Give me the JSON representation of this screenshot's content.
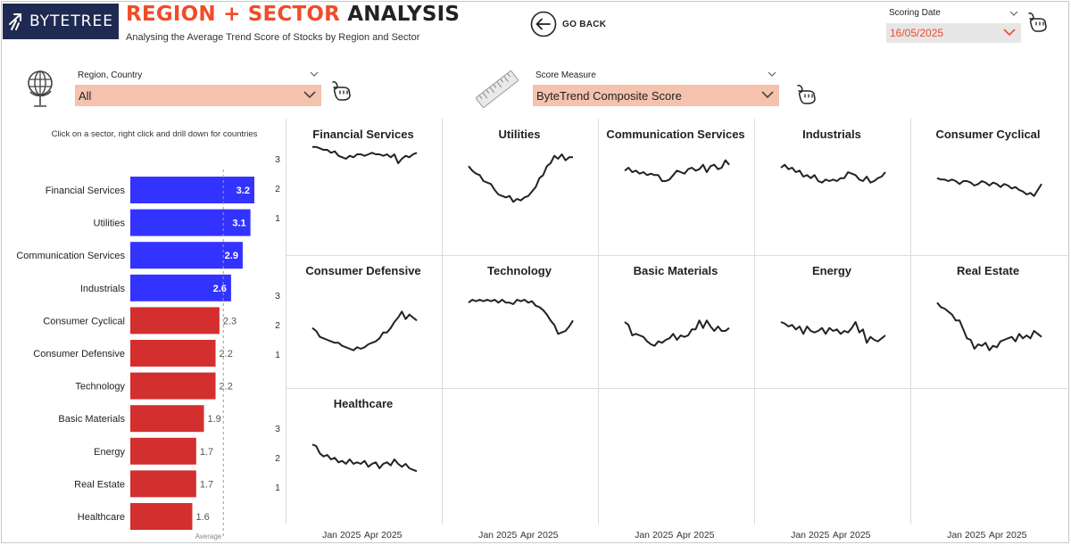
{
  "header": {
    "logo_text": "BYTETREE",
    "title_accent": "REGION + SECTOR",
    "title_rest": "ANALYSIS",
    "subtitle": "Analysing the Average Trend Score of Stocks by Region and Sector",
    "go_back_label": "GO BACK"
  },
  "filters": {
    "scoring_date": {
      "label": "Scoring Date",
      "value": "16/05/2025"
    },
    "region": {
      "label": "Region, Country",
      "value": "All"
    },
    "measure": {
      "label": "Score Measure",
      "value": "ByteTrend Composite Score"
    }
  },
  "colors": {
    "accent": "#ef4c2a",
    "bar_above": "#3333ff",
    "bar_below": "#d32f2f",
    "slicer_bg": "#f4c2ad",
    "date_bg": "#e6e6e6",
    "logo_bg": "#1f2a52",
    "line": "#222222"
  },
  "icons": {
    "logo": "bytetree-logo-icon",
    "back": "back-arrow-circle-icon",
    "pointer": "pointing-hand-icon",
    "region": "globe-icon",
    "measure": "ruler-icon",
    "dropdown": "chevron-down-icon"
  },
  "chart_data": [
    {
      "type": "bar",
      "orientation": "horizontal",
      "caption": "Click on a sector, right click and drill down for countries",
      "categories": [
        "Financial Services",
        "Utilities",
        "Communication Services",
        "Industrials",
        "Consumer Cyclical",
        "Consumer Defensive",
        "Technology",
        "Basic Materials",
        "Energy",
        "Real Estate",
        "Healthcare"
      ],
      "values": [
        3.2,
        3.1,
        2.9,
        2.6,
        2.3,
        2.2,
        2.2,
        1.9,
        1.7,
        1.7,
        1.6
      ],
      "value_labels": [
        "3.2",
        "3.1",
        "2.9",
        "2.6",
        "2.3",
        "2.2",
        "2.2",
        "1.9",
        "1.7",
        "1.7",
        "1.6"
      ],
      "reference_line": {
        "label": "Average",
        "value": 2.4
      },
      "xlim": [
        0,
        3.5
      ]
    },
    {
      "type": "line",
      "layout": "small-multiples",
      "ylim": [
        0.5,
        3.5
      ],
      "y_ticks": [
        "3",
        "2",
        "1"
      ],
      "x_ticks": [
        "Jan 2025",
        "Apr 2025"
      ],
      "x_tick_positions": [
        0.3,
        0.7
      ],
      "panels": [
        {
          "name": "Financial Services",
          "values": [
            3.45,
            3.45,
            3.4,
            3.35,
            3.35,
            3.25,
            3.3,
            3.15,
            3.1,
            3.05,
            3.15,
            3.1,
            3.2,
            3.2,
            3.15,
            3.2,
            3.25,
            3.2,
            3.2,
            3.15,
            3.2,
            3.1,
            3.2,
            2.9,
            3.05,
            3.15,
            3.1,
            3.2,
            3.25
          ]
        },
        {
          "name": "Utilities",
          "values": [
            2.8,
            2.65,
            2.55,
            2.5,
            2.3,
            2.25,
            2.2,
            2.0,
            1.85,
            1.8,
            1.75,
            1.8,
            1.6,
            1.7,
            1.65,
            1.75,
            1.8,
            1.95,
            2.1,
            2.4,
            2.5,
            2.8,
            2.9,
            3.15,
            3.05,
            3.2,
            3.0,
            3.1,
            3.1
          ]
        },
        {
          "name": "Communication Services",
          "values": [
            2.65,
            2.75,
            2.6,
            2.65,
            2.55,
            2.6,
            2.5,
            2.55,
            2.5,
            2.5,
            2.3,
            2.3,
            2.35,
            2.5,
            2.65,
            2.6,
            2.55,
            2.7,
            2.75,
            2.65,
            2.7,
            2.85,
            2.6,
            2.8,
            2.85,
            2.7,
            2.75,
            3.0,
            2.85
          ]
        },
        {
          "name": "Industrials",
          "values": [
            2.75,
            2.85,
            2.7,
            2.75,
            2.6,
            2.65,
            2.45,
            2.5,
            2.4,
            2.5,
            2.3,
            2.25,
            2.35,
            2.3,
            2.35,
            2.3,
            2.4,
            2.4,
            2.6,
            2.55,
            2.5,
            2.35,
            2.3,
            2.45,
            2.25,
            2.3,
            2.4,
            2.45,
            2.6
          ]
        },
        {
          "name": "Consumer Cyclical",
          "values": [
            2.4,
            2.35,
            2.35,
            2.3,
            2.35,
            2.3,
            2.2,
            2.3,
            2.3,
            2.25,
            2.15,
            2.2,
            2.3,
            2.25,
            2.15,
            2.25,
            2.2,
            2.1,
            2.2,
            2.15,
            2.05,
            2.1,
            2.0,
            1.95,
            1.85,
            1.9,
            1.8,
            2.0,
            2.2
          ]
        },
        {
          "name": "Consumer Defensive",
          "values": [
            1.95,
            1.85,
            1.65,
            1.6,
            1.55,
            1.5,
            1.45,
            1.45,
            1.35,
            1.3,
            1.25,
            1.2,
            1.3,
            1.25,
            1.3,
            1.4,
            1.45,
            1.5,
            1.6,
            1.8,
            1.8,
            1.95,
            2.15,
            2.3,
            2.5,
            2.25,
            2.4,
            2.3,
            2.2
          ]
        },
        {
          "name": "Technology",
          "values": [
            2.8,
            2.9,
            2.85,
            2.9,
            2.85,
            2.9,
            2.85,
            2.9,
            2.8,
            2.9,
            2.8,
            2.8,
            2.75,
            2.9,
            2.85,
            2.9,
            2.8,
            2.85,
            2.7,
            2.65,
            2.55,
            2.4,
            2.2,
            2.05,
            1.75,
            1.8,
            1.85,
            2.0,
            2.2
          ]
        },
        {
          "name": "Basic Materials",
          "values": [
            2.15,
            2.05,
            1.7,
            1.75,
            1.7,
            1.65,
            1.5,
            1.4,
            1.35,
            1.5,
            1.45,
            1.55,
            1.6,
            1.75,
            1.55,
            1.7,
            1.65,
            1.7,
            1.9,
            1.9,
            2.2,
            1.95,
            2.2,
            2.0,
            1.85,
            2.0,
            1.85,
            1.85,
            1.95
          ]
        },
        {
          "name": "Energy",
          "values": [
            2.15,
            2.1,
            2.0,
            2.05,
            1.9,
            2.0,
            1.75,
            2.0,
            1.85,
            1.8,
            1.85,
            1.95,
            1.75,
            1.95,
            1.85,
            1.9,
            1.75,
            1.85,
            1.8,
            1.95,
            2.15,
            1.8,
            1.9,
            1.45,
            1.65,
            1.55,
            1.5,
            1.6,
            1.7
          ]
        },
        {
          "name": "Real Estate",
          "values": [
            2.8,
            2.65,
            2.6,
            2.5,
            2.4,
            2.2,
            2.2,
            1.9,
            1.6,
            1.55,
            1.25,
            1.4,
            1.35,
            1.45,
            1.2,
            1.35,
            1.3,
            1.5,
            1.55,
            1.6,
            1.65,
            1.5,
            1.75,
            1.6,
            1.7,
            1.6,
            1.85,
            1.75,
            1.65
          ]
        },
        {
          "name": "Healthcare",
          "values": [
            2.5,
            2.45,
            2.2,
            2.1,
            2.15,
            2.0,
            2.05,
            1.9,
            1.95,
            1.85,
            2.0,
            1.85,
            1.9,
            1.85,
            1.95,
            1.75,
            1.85,
            1.9,
            1.7,
            1.85,
            1.9,
            1.8,
            2.0,
            1.85,
            1.75,
            1.85,
            1.7,
            1.65,
            1.6
          ]
        }
      ]
    }
  ]
}
